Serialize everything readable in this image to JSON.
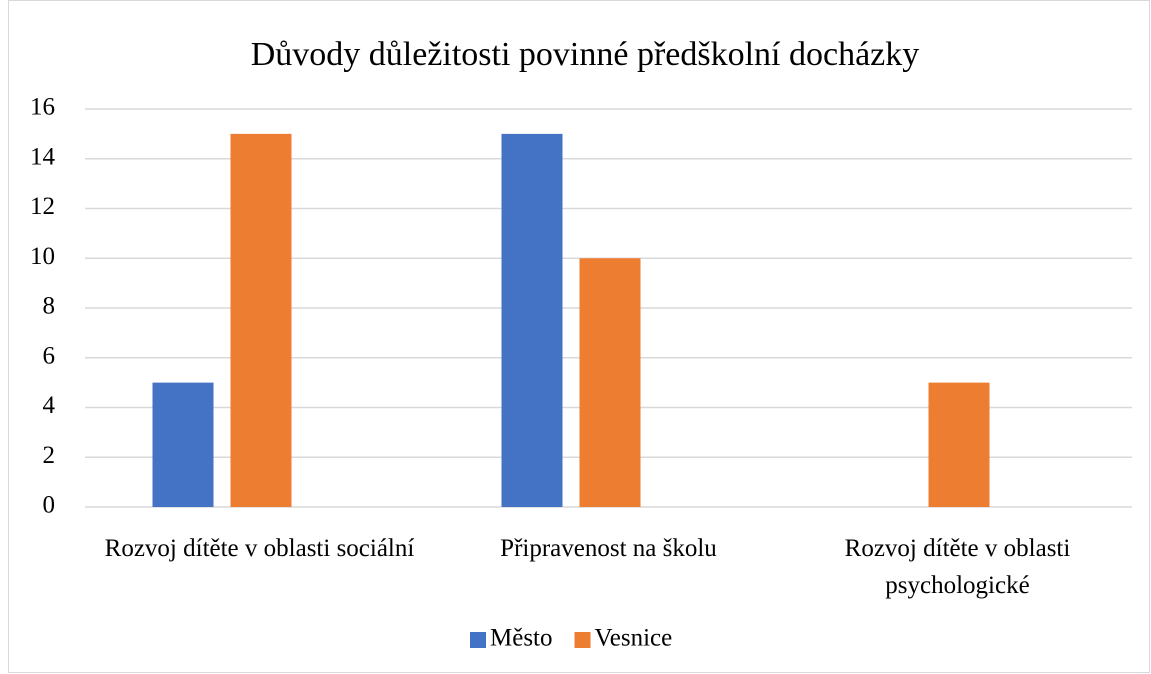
{
  "chart_data": {
    "type": "bar",
    "title": "Důvody důležitosti povinné předškolní docházky",
    "categories": [
      "Rozvoj dítěte v oblasti sociální",
      "Připravenost na školu",
      "Rozvoj dítěte v oblasti psychologické"
    ],
    "series": [
      {
        "name": "Město",
        "color": "#4472c4",
        "values": [
          5,
          15,
          0
        ]
      },
      {
        "name": "Vesnice",
        "color": "#ed7d31",
        "values": [
          15,
          10,
          5
        ]
      }
    ],
    "ylim": [
      0,
      16
    ],
    "yticks": [
      0,
      2,
      4,
      6,
      8,
      10,
      12,
      14,
      16
    ],
    "grid": true,
    "legend": "bottom"
  }
}
